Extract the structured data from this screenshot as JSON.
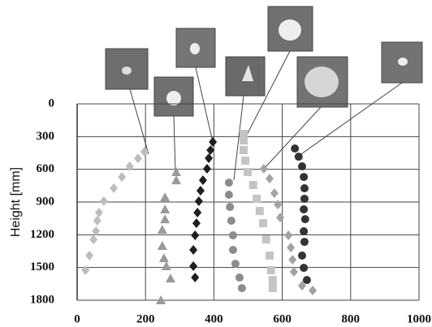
{
  "chart_data": {
    "type": "scatter",
    "ylabel": "Height [mm]",
    "xlim": [
      0,
      1000
    ],
    "xticks": [
      0,
      200,
      400,
      600,
      800,
      1000
    ],
    "ylim": [
      0,
      1800
    ],
    "yticks": [
      0,
      300,
      600,
      900,
      1200,
      1500,
      1800
    ],
    "y_inverted": true,
    "grid": true,
    "series": [
      {
        "color": "#bdbdbd",
        "marker": "diamond",
        "x": [
          197,
          178,
          154,
          131,
          107,
          78,
          64,
          59,
          55,
          48,
          36,
          24
        ],
        "values": [
          439,
          500,
          573,
          670,
          774,
          893,
          997,
          1071,
          1168,
          1243,
          1391,
          1525
        ]
      },
      {
        "color": "#9a9a9a",
        "marker": "triangle",
        "x": [
          290,
          290,
          257,
          257,
          257,
          249,
          249,
          254,
          261,
          273,
          245
        ],
        "values": [
          625,
          700,
          856,
          967,
          1057,
          1153,
          1302,
          1414,
          1488,
          1600,
          1800
        ]
      },
      {
        "color": "#1e1e1e",
        "marker": "diamond",
        "x": [
          397,
          390,
          385,
          380,
          368,
          361,
          356,
          352,
          349,
          345,
          340,
          340,
          345
        ],
        "values": [
          350,
          424,
          498,
          595,
          700,
          796,
          893,
          997,
          1094,
          1205,
          1339,
          1488,
          1592
        ]
      },
      {
        "color": "#8c8c8c",
        "marker": "circle",
        "x": [
          444,
          444,
          447,
          451,
          456,
          456,
          463,
          475,
          482
        ],
        "values": [
          722,
          833,
          945,
          1071,
          1205,
          1339,
          1466,
          1592,
          1689
        ]
      },
      {
        "color": "#c4c4c4",
        "marker": "square",
        "x": [
          487,
          487,
          487,
          492,
          499,
          515,
          525,
          534,
          544,
          553,
          563,
          567,
          572,
          572
        ],
        "values": [
          275,
          335,
          424,
          521,
          625,
          744,
          870,
          982,
          1094,
          1243,
          1391,
          1525,
          1615,
          1689
        ]
      },
      {
        "color": "#a2a2a2",
        "marker": "diamond",
        "x": [
          546,
          563,
          577,
          587,
          594,
          618,
          625,
          630,
          634,
          658,
          689
        ],
        "values": [
          595,
          685,
          819,
          923,
          1042,
          1205,
          1317,
          1429,
          1540,
          1667,
          1711
        ]
      },
      {
        "color": "#333333",
        "marker": "circle",
        "x": [
          637,
          648,
          658,
          663,
          665,
          665,
          663,
          667,
          663,
          665,
          658,
          663,
          672
        ],
        "values": [
          409,
          484,
          573,
          670,
          774,
          870,
          967,
          1057,
          1168,
          1265,
          1391,
          1503,
          1615
        ]
      }
    ]
  }
}
